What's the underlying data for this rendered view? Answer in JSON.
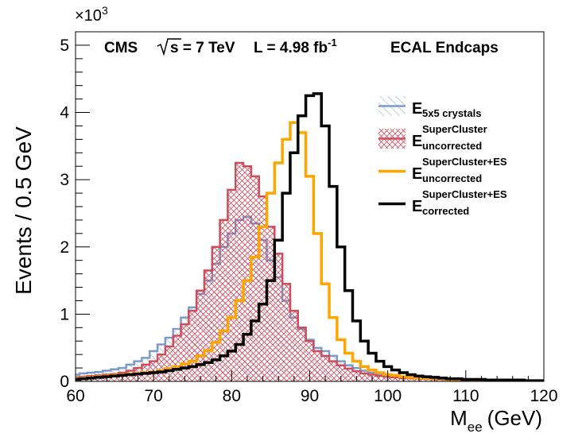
{
  "chart_data": {
    "type": "line",
    "title": "",
    "experiment": "CMS",
    "sqrt_s_label": "s = 7 TeV",
    "lumi_label": "L = 4.98 fb",
    "lumi_exponent": "-1",
    "region_label": "ECAL Endcaps",
    "xlabel": "M",
    "xlabel_sub": "ee",
    "xlabel_unit": "(GeV)",
    "ylabel": "Events / 0.5 GeV",
    "y_multiplier": "×10",
    "y_multiplier_exp": "3",
    "xlim": [
      60,
      120
    ],
    "ylim": [
      0,
      5.2
    ],
    "xticks": [
      "60",
      "70",
      "80",
      "90",
      "100",
      "110",
      "120"
    ],
    "yticks": [
      "0",
      "1",
      "2",
      "3",
      "4",
      "5"
    ],
    "x": [
      60,
      61,
      62,
      63,
      64,
      65,
      66,
      67,
      68,
      69,
      70,
      71,
      72,
      73,
      74,
      75,
      76,
      77,
      78,
      79,
      80,
      81,
      82,
      83,
      84,
      85,
      86,
      87,
      88,
      89,
      90,
      91,
      92,
      93,
      94,
      95,
      96,
      97,
      98,
      99,
      100,
      101,
      102,
      103,
      104,
      105,
      106,
      107,
      108,
      109,
      110,
      111,
      112,
      113,
      114,
      115,
      116,
      117,
      118,
      119,
      120
    ],
    "series": [
      {
        "name": "E",
        "name_sub": "5x5 crystals",
        "name_sup": "",
        "color": "#7b9acc",
        "style": "hatch-blue",
        "values": [
          0.1,
          0.12,
          0.13,
          0.14,
          0.16,
          0.18,
          0.2,
          0.25,
          0.3,
          0.35,
          0.45,
          0.55,
          0.65,
          0.78,
          0.95,
          1.1,
          1.3,
          1.5,
          1.75,
          2.0,
          2.2,
          2.4,
          2.45,
          2.35,
          2.1,
          1.8,
          1.55,
          1.2,
          0.95,
          0.78,
          0.62,
          0.5,
          0.45,
          0.38,
          0.3,
          0.24,
          0.2,
          0.16,
          0.13,
          0.11,
          0.09,
          0.08,
          0.07,
          0.06,
          0.05,
          0.05,
          0.04,
          0.04,
          0.03,
          0.03,
          0.03,
          0.02,
          0.02,
          0.02,
          0.02,
          0.01,
          0.01,
          0.01,
          0.01,
          0.01,
          0.01
        ]
      },
      {
        "name": "E",
        "name_sub": "uncorrected",
        "name_sup": "SuperCluster",
        "color": "#cc4d5c",
        "style": "hatch-red",
        "values": [
          0.06,
          0.07,
          0.08,
          0.09,
          0.1,
          0.11,
          0.13,
          0.16,
          0.2,
          0.25,
          0.3,
          0.4,
          0.52,
          0.68,
          0.85,
          1.05,
          1.35,
          1.65,
          2.0,
          2.4,
          2.85,
          3.25,
          3.2,
          3.05,
          2.75,
          2.3,
          1.9,
          1.45,
          1.05,
          0.8,
          0.6,
          0.45,
          0.38,
          0.3,
          0.24,
          0.19,
          0.15,
          0.12,
          0.1,
          0.08,
          0.07,
          0.06,
          0.05,
          0.05,
          0.04,
          0.04,
          0.03,
          0.03,
          0.03,
          0.02,
          0.02,
          0.02,
          0.02,
          0.01,
          0.01,
          0.01,
          0.01,
          0.01,
          0.01,
          0.01,
          0.01
        ]
      },
      {
        "name": "E",
        "name_sub": "uncorrected",
        "name_sup": "SuperCluster+ES",
        "color": "#ffa500",
        "style": "line",
        "values": [
          0.04,
          0.05,
          0.06,
          0.07,
          0.08,
          0.09,
          0.1,
          0.11,
          0.12,
          0.13,
          0.14,
          0.16,
          0.19,
          0.22,
          0.26,
          0.3,
          0.38,
          0.46,
          0.58,
          0.75,
          0.95,
          1.2,
          1.5,
          1.85,
          2.3,
          2.8,
          3.25,
          3.6,
          3.85,
          3.7,
          3.05,
          2.2,
          1.45,
          0.95,
          0.62,
          0.42,
          0.3,
          0.22,
          0.17,
          0.13,
          0.1,
          0.09,
          0.07,
          0.06,
          0.05,
          0.05,
          0.04,
          0.04,
          0.03,
          0.03,
          0.03,
          0.02,
          0.02,
          0.02,
          0.02,
          0.02,
          0.01,
          0.01,
          0.01,
          0.01,
          0.01
        ]
      },
      {
        "name": "E",
        "name_sub": "corrected",
        "name_sup": "SuperCluster+ES",
        "color": "#000000",
        "style": "line",
        "values": [
          0.03,
          0.04,
          0.05,
          0.06,
          0.07,
          0.08,
          0.09,
          0.1,
          0.11,
          0.12,
          0.13,
          0.14,
          0.16,
          0.18,
          0.2,
          0.22,
          0.25,
          0.28,
          0.32,
          0.38,
          0.45,
          0.55,
          0.7,
          0.9,
          1.15,
          1.5,
          2.1,
          2.8,
          3.4,
          3.95,
          4.25,
          4.28,
          3.8,
          2.9,
          2.0,
          1.35,
          0.9,
          0.6,
          0.42,
          0.3,
          0.22,
          0.17,
          0.13,
          0.1,
          0.08,
          0.07,
          0.06,
          0.05,
          0.04,
          0.04,
          0.03,
          0.03,
          0.03,
          0.02,
          0.02,
          0.02,
          0.02,
          0.02,
          0.01,
          0.01,
          0.01
        ]
      }
    ]
  }
}
